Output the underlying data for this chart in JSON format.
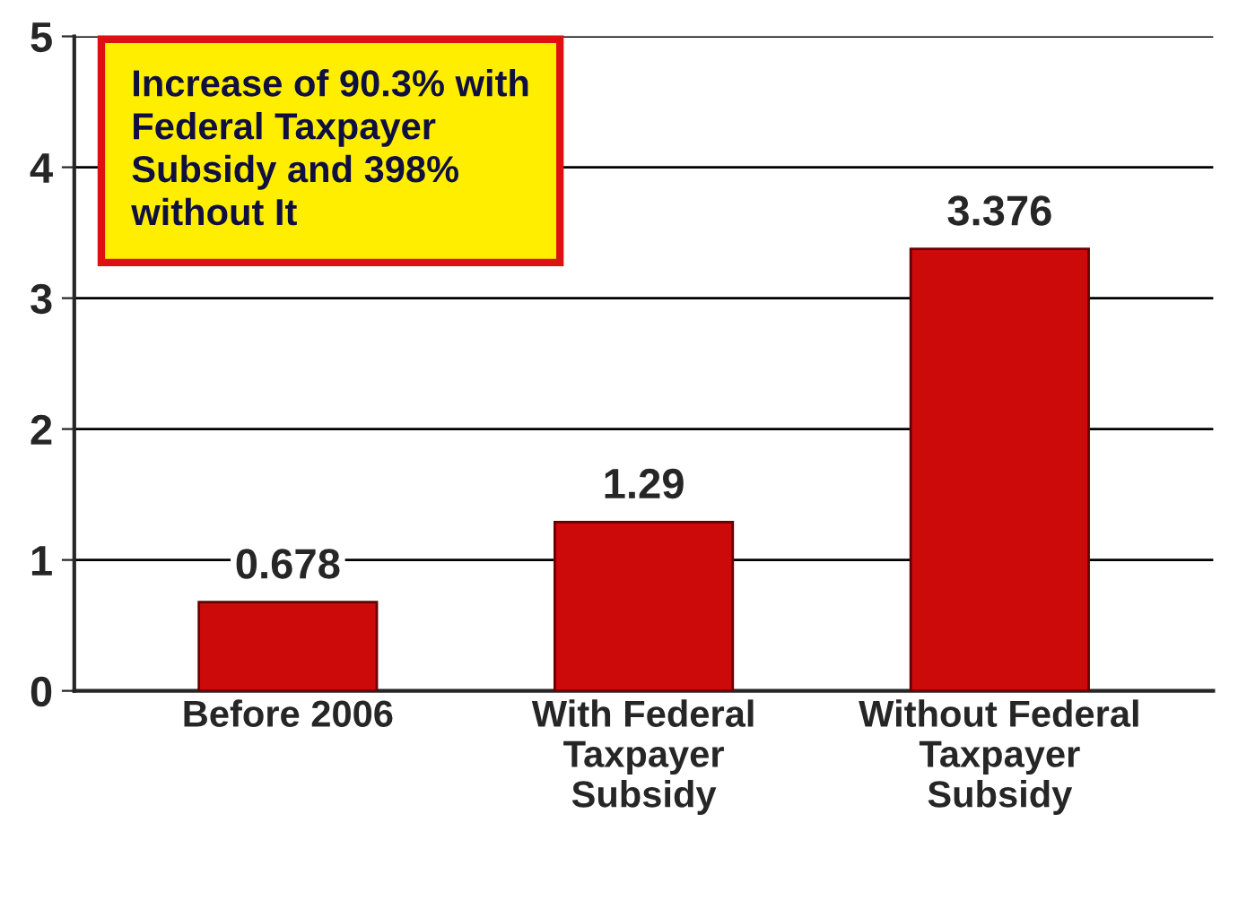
{
  "chart_data": {
    "type": "bar",
    "categories": [
      "Before 2006",
      "With Federal\nTaxpayer\nSubsidy",
      "Without Federal\nTaxpayer\nSubsidy"
    ],
    "values": [
      0.678,
      1.29,
      3.376
    ],
    "color": "#cc0a0a",
    "ylim": [
      0,
      5
    ],
    "yticks": [
      0,
      1,
      2,
      3,
      4,
      5
    ],
    "grid": "y",
    "data_labels": true,
    "annotations": [
      "Increase of 90.3% with\nFederal Taxpayer\nSubsidy and 398%\nwithout It"
    ]
  }
}
